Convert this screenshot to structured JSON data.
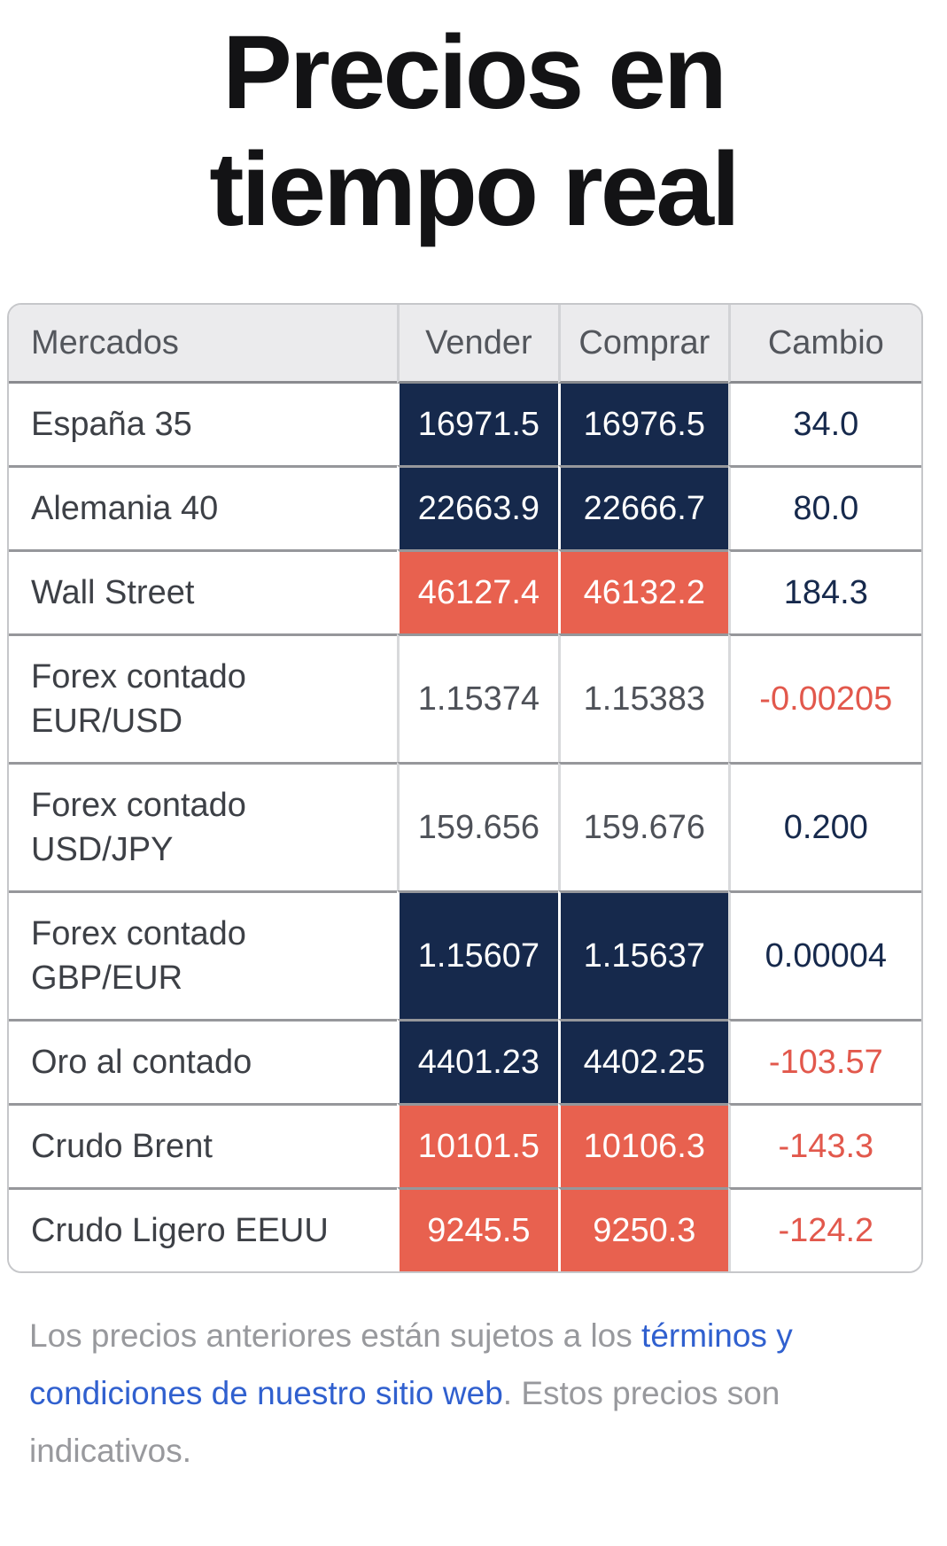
{
  "title": {
    "lines": [
      "Precios en",
      "tiempo real"
    ]
  },
  "table": {
    "headers": {
      "mercados": "Mercados",
      "vender": "Vender",
      "comprar": "Comprar",
      "cambio": "Cambio"
    },
    "rows": [
      {
        "market_lines": [
          "España 35"
        ],
        "vender": "16971.5",
        "comprar": "16976.5",
        "cambio": "34.0",
        "cell_style": "navy",
        "cambio_style": "positive"
      },
      {
        "market_lines": [
          "Alemania 40"
        ],
        "vender": "22663.9",
        "comprar": "22666.7",
        "cambio": "80.0",
        "cell_style": "navy",
        "cambio_style": "positive"
      },
      {
        "market_lines": [
          "Wall Street"
        ],
        "vender": "46127.4",
        "comprar": "46132.2",
        "cambio": "184.3",
        "cell_style": "salmon",
        "cambio_style": "positive"
      },
      {
        "market_lines": [
          "Forex contado",
          "EUR/USD"
        ],
        "vender": "1.15374",
        "comprar": "1.15383",
        "cambio": "-0.00205",
        "cell_style": "plain",
        "cambio_style": "negative"
      },
      {
        "market_lines": [
          "Forex contado",
          "USD/JPY"
        ],
        "vender": "159.656",
        "comprar": "159.676",
        "cambio": "0.200",
        "cell_style": "plain",
        "cambio_style": "positive"
      },
      {
        "market_lines": [
          "Forex contado",
          "GBP/EUR"
        ],
        "vender": "1.15607",
        "comprar": "1.15637",
        "cambio": "0.00004",
        "cell_style": "navy",
        "cambio_style": "positive"
      },
      {
        "market_lines": [
          "Oro al contado"
        ],
        "vender": "4401.23",
        "comprar": "4402.25",
        "cambio": "-103.57",
        "cell_style": "navy",
        "cambio_style": "negative"
      },
      {
        "market_lines": [
          "Crudo Brent"
        ],
        "vender": "10101.5",
        "comprar": "10106.3",
        "cambio": "-143.3",
        "cell_style": "salmon",
        "cambio_style": "negative"
      },
      {
        "market_lines": [
          "Crudo Ligero EEUU"
        ],
        "vender": "9245.5",
        "comprar": "9250.3",
        "cambio": "-124.2",
        "cell_style": "salmon",
        "cambio_style": "negative"
      }
    ]
  },
  "footer": {
    "lines": [
      [
        {
          "text": "Los precios anteriores están sujetos a los ",
          "style": "plain"
        },
        {
          "text": "términos y",
          "style": "link"
        }
      ],
      [
        {
          "text": "condiciones de nuestro sitio web",
          "style": "link"
        },
        {
          "text": ". Estos precios son",
          "style": "plain"
        }
      ],
      [
        {
          "text": "indicativos.",
          "style": "plain"
        }
      ]
    ]
  },
  "colors": {
    "navy_cell": "#16294C",
    "salmon_cell": "#E8614F",
    "positive_change": "#16294C",
    "negative_change": "#E2584C",
    "link_blue": "#3060CF",
    "header_background": "#EBEBED"
  }
}
